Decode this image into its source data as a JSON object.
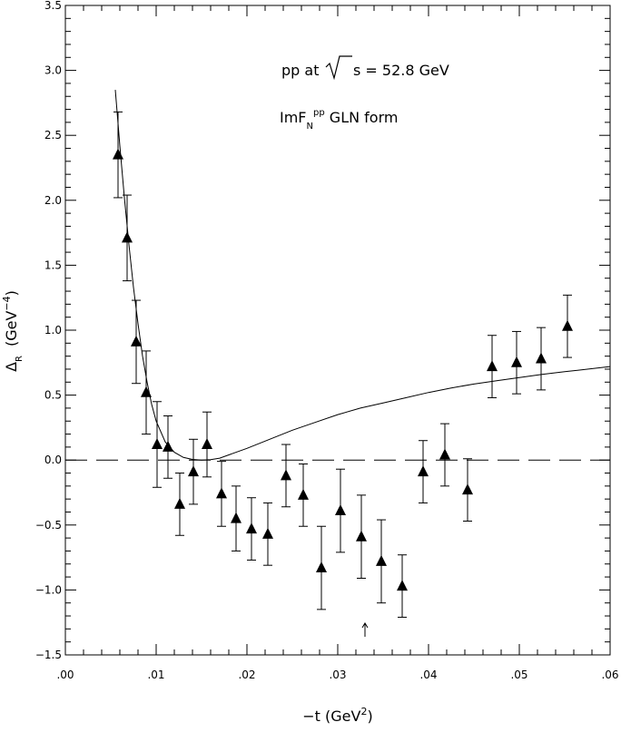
{
  "chart_data": {
    "type": "scatter",
    "title": "",
    "annotations": {
      "line1_prefix": "pp at",
      "line1_suffix": "s  = 52.8 GeV",
      "line2_prefix": "ImF",
      "line2_sub": "N",
      "line2_sup": "pp",
      "line2_suffix": " GLN form"
    },
    "xlabel": {
      "prefix": "−t  (GeV",
      "sup": "2",
      "suffix": ")"
    },
    "ylabel": {
      "main": "Δ",
      "sub": "R",
      "prefix": "(GeV",
      "sup": "−4",
      "suffix": ")"
    },
    "xlim": [
      0.0,
      0.06
    ],
    "ylim": [
      -1.5,
      3.5
    ],
    "x_tick_labels": [
      ".00",
      ".01",
      ".02",
      ".03",
      ".04",
      ".05",
      ".06"
    ],
    "x_ticks": [
      0.0,
      0.01,
      0.02,
      0.03,
      0.04,
      0.05,
      0.06
    ],
    "y_tick_labels": [
      "−1.5",
      "−1.0",
      "−0.5",
      "0.0",
      "0.5",
      "1.0",
      "1.5",
      "2.0",
      "2.5",
      "3.0",
      "3.5"
    ],
    "y_ticks": [
      -1.5,
      -1.0,
      -0.5,
      0.0,
      0.5,
      1.0,
      1.5,
      2.0,
      2.5,
      3.0,
      3.5
    ],
    "arrow_marker_x": 0.033,
    "reference_line_y": 0.0,
    "series": [
      {
        "kind": "points-with-errorbars",
        "points": [
          {
            "x": 0.0058,
            "y": 2.35,
            "err": 0.33
          },
          {
            "x": 0.0068,
            "y": 1.71,
            "err": 0.33
          },
          {
            "x": 0.0078,
            "y": 0.91,
            "err": 0.32
          },
          {
            "x": 0.0089,
            "y": 0.52,
            "err": 0.32
          },
          {
            "x": 0.0101,
            "y": 0.12,
            "err": 0.33
          },
          {
            "x": 0.0113,
            "y": 0.1,
            "err": 0.24
          },
          {
            "x": 0.0126,
            "y": -0.34,
            "err": 0.24
          },
          {
            "x": 0.0141,
            "y": -0.09,
            "err": 0.25
          },
          {
            "x": 0.0156,
            "y": 0.12,
            "err": 0.25
          },
          {
            "x": 0.0172,
            "y": -0.26,
            "err": 0.25
          },
          {
            "x": 0.0188,
            "y": -0.45,
            "err": 0.25
          },
          {
            "x": 0.0205,
            "y": -0.53,
            "err": 0.24
          },
          {
            "x": 0.0223,
            "y": -0.57,
            "err": 0.24
          },
          {
            "x": 0.0243,
            "y": -0.12,
            "err": 0.24
          },
          {
            "x": 0.0262,
            "y": -0.27,
            "err": 0.24
          },
          {
            "x": 0.0282,
            "y": -0.83,
            "err": 0.32
          },
          {
            "x": 0.0303,
            "y": -0.39,
            "err": 0.32
          },
          {
            "x": 0.0326,
            "y": -0.59,
            "err": 0.32
          },
          {
            "x": 0.0348,
            "y": -0.78,
            "err": 0.32
          },
          {
            "x": 0.0371,
            "y": -0.97,
            "err": 0.24
          },
          {
            "x": 0.0394,
            "y": -0.09,
            "err": 0.24
          },
          {
            "x": 0.0418,
            "y": 0.04,
            "err": 0.24
          },
          {
            "x": 0.0443,
            "y": -0.23,
            "err": 0.24
          },
          {
            "x": 0.047,
            "y": 0.72,
            "err": 0.24
          },
          {
            "x": 0.0497,
            "y": 0.75,
            "err": 0.24
          },
          {
            "x": 0.0524,
            "y": 0.78,
            "err": 0.24
          },
          {
            "x": 0.0553,
            "y": 1.03,
            "err": 0.24
          }
        ]
      },
      {
        "kind": "curve",
        "points": [
          {
            "x": 0.0055,
            "y": 2.85
          },
          {
            "x": 0.006,
            "y": 2.42
          },
          {
            "x": 0.0065,
            "y": 2.02
          },
          {
            "x": 0.007,
            "y": 1.66
          },
          {
            "x": 0.0075,
            "y": 1.33
          },
          {
            "x": 0.008,
            "y": 1.05
          },
          {
            "x": 0.0085,
            "y": 0.8
          },
          {
            "x": 0.009,
            "y": 0.6
          },
          {
            "x": 0.0095,
            "y": 0.43
          },
          {
            "x": 0.01,
            "y": 0.3
          },
          {
            "x": 0.011,
            "y": 0.14
          },
          {
            "x": 0.012,
            "y": 0.06
          },
          {
            "x": 0.013,
            "y": 0.02
          },
          {
            "x": 0.014,
            "y": 0.005
          },
          {
            "x": 0.015,
            "y": 0.0
          },
          {
            "x": 0.016,
            "y": 0.003
          },
          {
            "x": 0.017,
            "y": 0.015
          },
          {
            "x": 0.018,
            "y": 0.04
          },
          {
            "x": 0.02,
            "y": 0.09
          },
          {
            "x": 0.0225,
            "y": 0.16
          },
          {
            "x": 0.025,
            "y": 0.23
          },
          {
            "x": 0.0275,
            "y": 0.29
          },
          {
            "x": 0.03,
            "y": 0.35
          },
          {
            "x": 0.0325,
            "y": 0.4
          },
          {
            "x": 0.035,
            "y": 0.44
          },
          {
            "x": 0.0375,
            "y": 0.48
          },
          {
            "x": 0.04,
            "y": 0.52
          },
          {
            "x": 0.0425,
            "y": 0.555
          },
          {
            "x": 0.045,
            "y": 0.585
          },
          {
            "x": 0.0475,
            "y": 0.61
          },
          {
            "x": 0.05,
            "y": 0.635
          },
          {
            "x": 0.0525,
            "y": 0.66
          },
          {
            "x": 0.055,
            "y": 0.68
          },
          {
            "x": 0.0575,
            "y": 0.7
          },
          {
            "x": 0.06,
            "y": 0.72
          }
        ]
      }
    ]
  }
}
